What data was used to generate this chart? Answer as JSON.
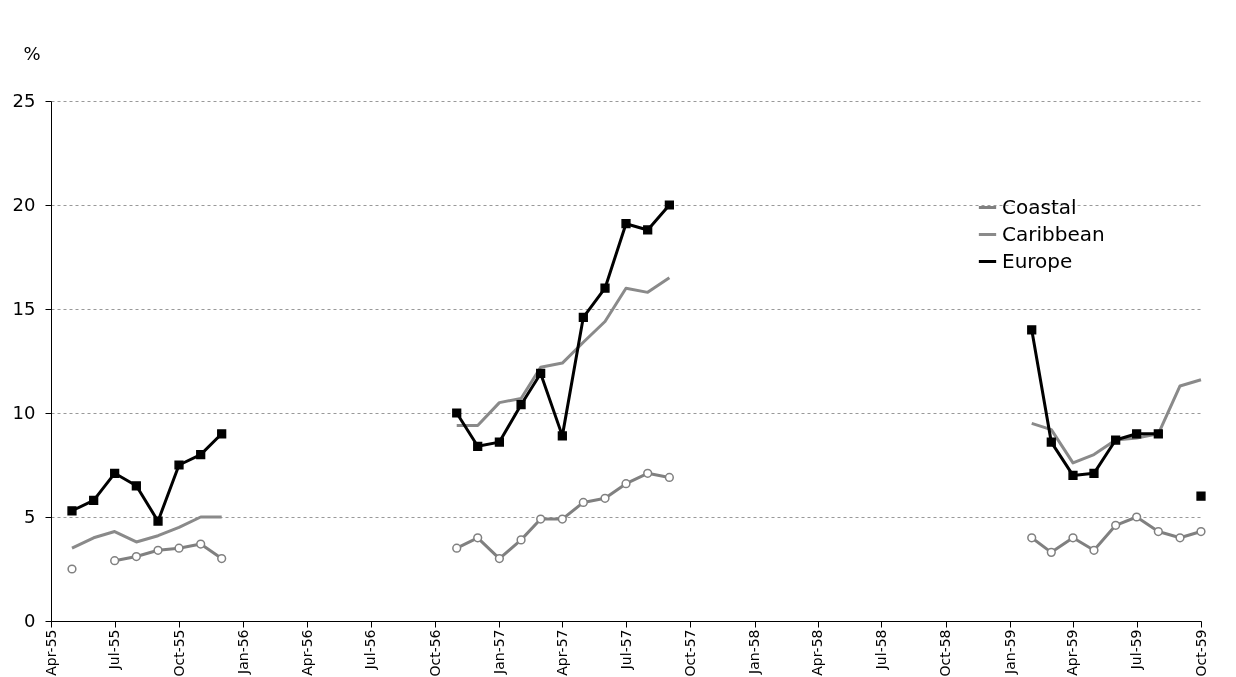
{
  "chart_data": {
    "type": "line",
    "ylabel": "%",
    "x": [
      "1955-05",
      "1955-06",
      "1955-07",
      "1955-08",
      "1955-09",
      "1955-10",
      "1955-11",
      "1955-12",
      "1956-01",
      "1956-11",
      "1956-12",
      "1957-01",
      "1957-02",
      "1957-03",
      "1957-04",
      "1957-05",
      "1957-06",
      "1957-07",
      "1957-08",
      "1957-09",
      "1957-10",
      "1959-02",
      "1959-03",
      "1959-04",
      "1959-05",
      "1959-06",
      "1959-07",
      "1959-08",
      "1959-09",
      "1959-10"
    ],
    "series": [
      {
        "name": "Coastal",
        "color": "#808080",
        "marker": "circle",
        "values": [
          2.5,
          null,
          2.9,
          3.1,
          3.4,
          3.5,
          3.7,
          3.0,
          null,
          3.5,
          4.0,
          3.0,
          3.9,
          4.9,
          4.9,
          5.7,
          5.9,
          6.6,
          7.1,
          6.9,
          null,
          4.0,
          3.3,
          4.0,
          3.4,
          4.6,
          5.0,
          4.3,
          4.0,
          4.3
        ]
      },
      {
        "name": "Caribbean",
        "color": "#8a8a8a",
        "marker": "none",
        "values": [
          3.5,
          4.0,
          4.3,
          3.8,
          4.1,
          4.5,
          5.0,
          5.0,
          null,
          9.4,
          9.4,
          10.5,
          10.7,
          12.2,
          12.4,
          13.4,
          14.4,
          16.0,
          15.8,
          16.5,
          null,
          9.5,
          9.2,
          7.6,
          8.0,
          8.7,
          8.8,
          9.0,
          11.3,
          11.6
        ]
      },
      {
        "name": "Europe",
        "color": "#000000",
        "marker": "square",
        "values": [
          5.3,
          5.8,
          7.1,
          6.5,
          4.8,
          7.5,
          8.0,
          9.0,
          null,
          10.0,
          8.4,
          8.6,
          10.4,
          11.9,
          8.9,
          14.6,
          16.0,
          19.1,
          18.8,
          20.0,
          null,
          14.0,
          8.6,
          7.0,
          7.1,
          8.7,
          9.0,
          9.0,
          null,
          6.0
        ]
      }
    ],
    "xlim": [
      "1955-04",
      "1959-10"
    ],
    "xticks": [
      {
        "value": "1955-04",
        "label": "Apr-55"
      },
      {
        "value": "1955-07",
        "label": "Jul-55"
      },
      {
        "value": "1955-10",
        "label": "Oct-55"
      },
      {
        "value": "1956-01",
        "label": "Jan-56"
      },
      {
        "value": "1956-04",
        "label": "Apr-56"
      },
      {
        "value": "1956-07",
        "label": "Jul-56"
      },
      {
        "value": "1956-10",
        "label": "Oct-56"
      },
      {
        "value": "1957-01",
        "label": "Jan-57"
      },
      {
        "value": "1957-04",
        "label": "Apr-57"
      },
      {
        "value": "1957-07",
        "label": "Jul-57"
      },
      {
        "value": "1957-10",
        "label": "Oct-57"
      },
      {
        "value": "1958-01",
        "label": "Jan-58"
      },
      {
        "value": "1958-04",
        "label": "Apr-58"
      },
      {
        "value": "1958-07",
        "label": "Jul-58"
      },
      {
        "value": "1958-10",
        "label": "Oct-58"
      },
      {
        "value": "1959-01",
        "label": "Jan-59"
      },
      {
        "value": "1959-04",
        "label": "Apr-59"
      },
      {
        "value": "1959-07",
        "label": "Jul-59"
      },
      {
        "value": "1959-10",
        "label": "Oct-59"
      }
    ],
    "ylim": [
      0,
      25
    ],
    "yticks": [
      0,
      5,
      10,
      15,
      20,
      25
    ],
    "grid": "y",
    "legend": "top right",
    "line_style": "solid"
  }
}
